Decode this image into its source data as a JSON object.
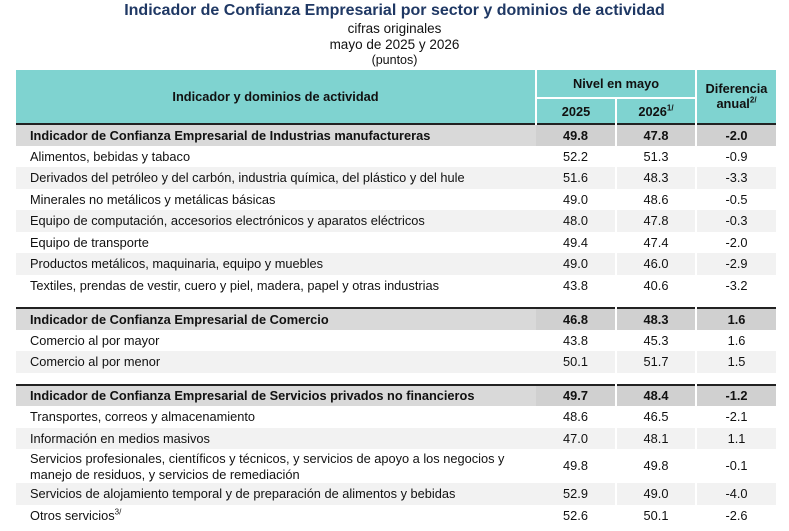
{
  "header": {
    "title": "Indicador de Confianza Empresarial por sector y dominios de actividad",
    "subtitle1": "cifras originales",
    "subtitle2": "mayo de 2025 y 2026",
    "subtitle3": "(puntos)"
  },
  "table": {
    "col_main": "Indicador y dominios de actividad",
    "col_nivel": "Nivel en mayo",
    "col_2025": "2025",
    "col_2026": "2026",
    "col_2026_note": "1/",
    "col_dif_line1": "Diferencia",
    "col_dif_line2": "anual",
    "col_dif_note": "2/",
    "sections": [
      {
        "name": "Indicador de Confianza Empresarial de Industrias manufactureras",
        "v2025": "49.8",
        "v2026": "47.8",
        "diff": "-2.0",
        "rows": [
          {
            "name": "Alimentos, bebidas y tabaco",
            "v2025": "52.2",
            "v2026": "51.3",
            "diff": "-0.9"
          },
          {
            "name": "Derivados del petróleo y del carbón, industria química, del plástico y del hule",
            "v2025": "51.6",
            "v2026": "48.3",
            "diff": "-3.3"
          },
          {
            "name": "Minerales no metálicos y metálicas básicas",
            "v2025": "49.0",
            "v2026": "48.6",
            "diff": "-0.5"
          },
          {
            "name": "Equipo de computación, accesorios electrónicos y aparatos eléctricos",
            "v2025": "48.0",
            "v2026": "47.8",
            "diff": "-0.3"
          },
          {
            "name": "Equipo de transporte",
            "v2025": "49.4",
            "v2026": "47.4",
            "diff": "-2.0"
          },
          {
            "name": "Productos metálicos, maquinaria, equipo y muebles",
            "v2025": "49.0",
            "v2026": "46.0",
            "diff": "-2.9"
          },
          {
            "name": "Textiles, prendas de vestir, cuero y piel, madera, papel y otras industrias",
            "v2025": "43.8",
            "v2026": "40.6",
            "diff": "-3.2"
          }
        ]
      },
      {
        "name": "Indicador de Confianza Empresarial de Comercio",
        "v2025": "46.8",
        "v2026": "48.3",
        "diff": "1.6",
        "rows": [
          {
            "name": "Comercio al por mayor",
            "v2025": "43.8",
            "v2026": "45.3",
            "diff": "1.6"
          },
          {
            "name": "Comercio al por menor",
            "v2025": "50.1",
            "v2026": "51.7",
            "diff": "1.5"
          }
        ]
      },
      {
        "name": "Indicador de Confianza Empresarial de Servicios privados no financieros",
        "v2025": "49.7",
        "v2026": "48.4",
        "diff": "-1.2",
        "rows": [
          {
            "name": "Transportes, correos y almacenamiento",
            "v2025": "48.6",
            "v2026": "46.5",
            "diff": "-2.1"
          },
          {
            "name": "Información en medios masivos",
            "v2025": "47.0",
            "v2026": "48.1",
            "diff": "1.1"
          },
          {
            "name": "Servicios profesionales, científicos y técnicos, y servicios de apoyo a los negocios y manejo de residuos, y servicios de remediación",
            "v2025": "49.8",
            "v2026": "49.8",
            "diff": "-0.1",
            "tall": true
          },
          {
            "name": "Servicios de alojamiento temporal y de preparación de alimentos y bebidas",
            "v2025": "52.9",
            "v2026": "49.0",
            "diff": "-4.0"
          },
          {
            "name": "Otros servicios",
            "note": "3/",
            "v2025": "52.6",
            "v2026": "50.1",
            "diff": "-2.6"
          }
        ]
      }
    ]
  }
}
